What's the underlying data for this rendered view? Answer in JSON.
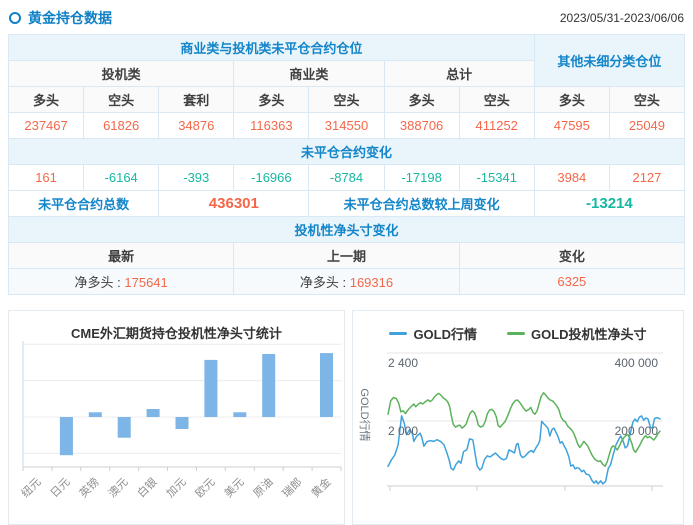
{
  "header": {
    "title": "黄金持仓数据",
    "date_range": "2023/05/31-2023/06/06"
  },
  "position_table": {
    "band_main": "商业类与投机类未平仓合约仓位",
    "band_other": "其他未细分类仓位",
    "groups": {
      "speculative": "投机类",
      "commercial": "商业类",
      "total": "总计"
    },
    "col_headers": [
      "多头",
      "空头",
      "套利",
      "多头",
      "空头",
      "多头",
      "空头",
      "多头",
      "空头"
    ],
    "open_interest": [
      "237467",
      "61826",
      "34876",
      "116363",
      "314550",
      "388706",
      "411252",
      "47595",
      "25049"
    ],
    "change_band": "未平仓合约变化",
    "changes": [
      "161",
      "-6164",
      "-393",
      "-16966",
      "-8784",
      "-17198",
      "-15341",
      "3984",
      "2127"
    ],
    "total_label": "未平仓合约总数",
    "total_value": "436301",
    "total_change_label": "未平仓合约总数较上周变化",
    "total_change_value": "-13214",
    "net_band": "投机性净头寸变化",
    "net_cols": [
      "最新",
      "上一期",
      "变化"
    ],
    "net_latest_label": "净多头 : ",
    "net_latest_value": "175641",
    "net_prev_label": "净多头 : ",
    "net_prev_value": "169316",
    "net_change_value": "6325"
  },
  "colors": {
    "accent_blue": "#1385c9",
    "positive": "#f4674a",
    "negative": "#16b8a2",
    "band_bg": "#eaf4fb",
    "table_border": "#d9e8f5"
  },
  "chart_data": [
    {
      "type": "bar",
      "title": "CME外汇期货持仓投机性净头寸统计",
      "categories": [
        "纽元",
        "日元",
        "英镑",
        "澳元",
        "白银",
        "加元",
        "欧元",
        "美元",
        "原油",
        "瑞郎",
        "黄金"
      ],
      "values": [
        -1000,
        -105000,
        13000,
        -57000,
        22000,
        -33000,
        157000,
        13000,
        173000,
        -2000,
        175641
      ],
      "gridline_interval": 100000,
      "ylim": [
        -138000,
        205000
      ],
      "y_tick_labels": [],
      "bar_color": "#7cb5e6",
      "grid": true
    },
    {
      "type": "line",
      "legend": [
        "GOLD行情",
        "GOLD投机性净头寸"
      ],
      "legend_position": "top",
      "grid": true,
      "y_axis_left": {
        "title": "GOLD行情",
        "ticks": [
          "2 000",
          "2 400"
        ],
        "tick_values": [
          2000,
          2400
        ]
      },
      "y_axis_right": {
        "ticks": [
          "200 000",
          "400 000"
        ],
        "tick_values": [
          200000,
          400000
        ]
      },
      "series": [
        {
          "name": "GOLD行情",
          "axis": "left",
          "color": "#3fa2dc",
          "points": [
            [
              0,
              1733
            ],
            [
              0.012,
              1770
            ],
            [
              0.025,
              1800
            ],
            [
              0.037,
              1860
            ],
            [
              0.05,
              2030
            ],
            [
              0.06,
              1985
            ],
            [
              0.068,
              1920
            ],
            [
              0.08,
              1950
            ],
            [
              0.09,
              1925
            ],
            [
              0.095,
              1880
            ],
            [
              0.105,
              1910
            ],
            [
              0.118,
              1928
            ],
            [
              0.125,
              1900
            ],
            [
              0.132,
              1852
            ],
            [
              0.143,
              1878
            ],
            [
              0.155,
              1885
            ],
            [
              0.168,
              1880
            ],
            [
              0.18,
              1890
            ],
            [
              0.193,
              1880
            ],
            [
              0.205,
              1862
            ],
            [
              0.215,
              1820
            ],
            [
              0.225,
              1770
            ],
            [
              0.232,
              1722
            ],
            [
              0.24,
              1712
            ],
            [
              0.25,
              1745
            ],
            [
              0.26,
              1765
            ],
            [
              0.268,
              1752
            ],
            [
              0.278,
              1820
            ],
            [
              0.29,
              1832
            ],
            [
              0.3,
              1895
            ],
            [
              0.312,
              1888
            ],
            [
              0.322,
              1790
            ],
            [
              0.328,
              1735
            ],
            [
              0.338,
              1712
            ],
            [
              0.345,
              1722
            ],
            [
              0.355,
              1775
            ],
            [
              0.365,
              1795
            ],
            [
              0.375,
              1788
            ],
            [
              0.385,
              1800
            ],
            [
              0.395,
              1812
            ],
            [
              0.405,
              1795
            ],
            [
              0.415,
              1780
            ],
            [
              0.425,
              1772
            ],
            [
              0.435,
              1778
            ],
            [
              0.445,
              1830
            ],
            [
              0.455,
              1822
            ],
            [
              0.465,
              1812
            ],
            [
              0.472,
              1862
            ],
            [
              0.478,
              1868
            ],
            [
              0.487,
              1800
            ],
            [
              0.495,
              1785
            ],
            [
              0.503,
              1792
            ],
            [
              0.512,
              1808
            ],
            [
              0.52,
              1820
            ],
            [
              0.528,
              1826
            ],
            [
              0.535,
              1815
            ],
            [
              0.545,
              1845
            ],
            [
              0.552,
              1862
            ],
            [
              0.558,
              1885
            ],
            [
              0.565,
              1998
            ],
            [
              0.572,
              1985
            ],
            [
              0.58,
              1972
            ],
            [
              0.588,
              1958
            ],
            [
              0.595,
              1912
            ],
            [
              0.603,
              1950
            ],
            [
              0.61,
              1958
            ],
            [
              0.618,
              1932
            ],
            [
              0.625,
              1908
            ],
            [
              0.633,
              1870
            ],
            [
              0.64,
              1878
            ],
            [
              0.648,
              1852
            ],
            [
              0.655,
              1832
            ],
            [
              0.665,
              1788
            ],
            [
              0.672,
              1735
            ],
            [
              0.68,
              1742
            ],
            [
              0.688,
              1718
            ],
            [
              0.695,
              1725
            ],
            [
              0.703,
              1722
            ],
            [
              0.712,
              1702
            ],
            [
              0.72,
              1710
            ],
            [
              0.728,
              1688
            ],
            [
              0.74,
              1682
            ],
            [
              0.75,
              1650
            ],
            [
              0.758,
              1635
            ],
            [
              0.765,
              1648
            ],
            [
              0.772,
              1630
            ],
            [
              0.782,
              1648
            ],
            [
              0.79,
              1630
            ],
            [
              0.8,
              1645
            ],
            [
              0.81,
              1722
            ],
            [
              0.818,
              1742
            ],
            [
              0.828,
              1802
            ],
            [
              0.838,
              1858
            ],
            [
              0.848,
              1892
            ],
            [
              0.856,
              1912
            ],
            [
              0.865,
              1878
            ],
            [
              0.872,
              1842
            ],
            [
              0.88,
              1852
            ],
            [
              0.89,
              1922
            ],
            [
              0.9,
              1992
            ],
            [
              0.908,
              2012
            ],
            [
              0.916,
              1996
            ],
            [
              0.924,
              2022
            ],
            [
              0.932,
              2030
            ],
            [
              0.94,
              2005
            ],
            [
              0.948,
              2018
            ],
            [
              0.956,
              2012
            ],
            [
              0.965,
              1962
            ],
            [
              0.972,
              1958
            ],
            [
              0.98,
              2015
            ],
            [
              0.99,
              2020
            ],
            [
              1,
              2012
            ]
          ]
        },
        {
          "name": "GOLD投机性净头寸",
          "axis": "right",
          "color": "#5cb25c",
          "points": [
            [
              0,
              220000
            ],
            [
              0.01,
              259000
            ],
            [
              0.02,
              269000
            ],
            [
              0.031,
              266000
            ],
            [
              0.04,
              251000
            ],
            [
              0.047,
              227000
            ],
            [
              0.056,
              230000
            ],
            [
              0.064,
              222000
            ],
            [
              0.075,
              234000
            ],
            [
              0.087,
              244000
            ],
            [
              0.095,
              250000
            ],
            [
              0.102,
              242000
            ],
            [
              0.112,
              250000
            ],
            [
              0.12,
              254000
            ],
            [
              0.128,
              250000
            ],
            [
              0.138,
              257000
            ],
            [
              0.147,
              262000
            ],
            [
              0.155,
              257000
            ],
            [
              0.163,
              262000
            ],
            [
              0.172,
              272000
            ],
            [
              0.182,
              279000
            ],
            [
              0.188,
              281000
            ],
            [
              0.195,
              276000
            ],
            [
              0.203,
              268000
            ],
            [
              0.212,
              263000
            ],
            [
              0.22,
              256000
            ],
            [
              0.227,
              242000
            ],
            [
              0.233,
              214000
            ],
            [
              0.24,
              190000
            ],
            [
              0.248,
              182000
            ],
            [
              0.256,
              186000
            ],
            [
              0.264,
              188000
            ],
            [
              0.272,
              179000
            ],
            [
              0.28,
              184000
            ],
            [
              0.288,
              192000
            ],
            [
              0.294,
              207000
            ],
            [
              0.302,
              223000
            ],
            [
              0.31,
              230000
            ],
            [
              0.318,
              224000
            ],
            [
              0.325,
              210000
            ],
            [
              0.332,
              188000
            ],
            [
              0.34,
              182000
            ],
            [
              0.35,
              186000
            ],
            [
              0.358,
              200000
            ],
            [
              0.365,
              221000
            ],
            [
              0.373,
              232000
            ],
            [
              0.382,
              234000
            ],
            [
              0.39,
              228000
            ],
            [
              0.398,
              212000
            ],
            [
              0.405,
              186000
            ],
            [
              0.412,
              182000
            ],
            [
              0.42,
              189000
            ],
            [
              0.43,
              198000
            ],
            [
              0.44,
              215000
            ],
            [
              0.45,
              236000
            ],
            [
              0.458,
              250000
            ],
            [
              0.468,
              260000
            ],
            [
              0.475,
              262000
            ],
            [
              0.483,
              256000
            ],
            [
              0.492,
              246000
            ],
            [
              0.5,
              236000
            ],
            [
              0.508,
              229000
            ],
            [
              0.518,
              234000
            ],
            [
              0.525,
              240000
            ],
            [
              0.533,
              225000
            ],
            [
              0.54,
              220000
            ],
            [
              0.548,
              230000
            ],
            [
              0.555,
              250000
            ],
            [
              0.563,
              272000
            ],
            [
              0.572,
              283000
            ],
            [
              0.58,
              276000
            ],
            [
              0.588,
              268000
            ],
            [
              0.596,
              262000
            ],
            [
              0.605,
              259000
            ],
            [
              0.613,
              252000
            ],
            [
              0.62,
              245000
            ],
            [
              0.628,
              234000
            ],
            [
              0.636,
              212000
            ],
            [
              0.645,
              201000
            ],
            [
              0.652,
              198000
            ],
            [
              0.66,
              186000
            ],
            [
              0.668,
              179000
            ],
            [
              0.676,
              173000
            ],
            [
              0.684,
              162000
            ],
            [
              0.69,
              149000
            ],
            [
              0.697,
              133000
            ],
            [
              0.705,
              122000
            ],
            [
              0.712,
              130000
            ],
            [
              0.72,
              140000
            ],
            [
              0.728,
              133000
            ],
            [
              0.735,
              126000
            ],
            [
              0.742,
              113000
            ],
            [
              0.75,
              100000
            ],
            [
              0.758,
              90000
            ],
            [
              0.766,
              84000
            ],
            [
              0.773,
              81000
            ],
            [
              0.781,
              83000
            ],
            [
              0.789,
              73000
            ],
            [
              0.798,
              67000
            ],
            [
              0.806,
              80000
            ],
            [
              0.814,
              102000
            ],
            [
              0.821,
              121000
            ],
            [
              0.828,
              127000
            ],
            [
              0.835,
              123000
            ],
            [
              0.843,
              115000
            ],
            [
              0.851,
              127000
            ],
            [
              0.859,
              141000
            ],
            [
              0.867,
              151000
            ],
            [
              0.875,
              157000
            ],
            [
              0.882,
              160000
            ],
            [
              0.889,
              149000
            ],
            [
              0.896,
              135000
            ],
            [
              0.903,
              115000
            ],
            [
              0.91,
              108000
            ],
            [
              0.917,
              117000
            ],
            [
              0.925,
              128000
            ],
            [
              0.933,
              141000
            ],
            [
              0.94,
              151000
            ],
            [
              0.947,
              157000
            ],
            [
              0.954,
              151000
            ],
            [
              0.962,
              154000
            ],
            [
              0.97,
              149000
            ],
            [
              0.977,
              144000
            ],
            [
              0.984,
              151000
            ],
            [
              0.992,
              162000
            ],
            [
              1,
              170000
            ]
          ]
        }
      ]
    }
  ]
}
